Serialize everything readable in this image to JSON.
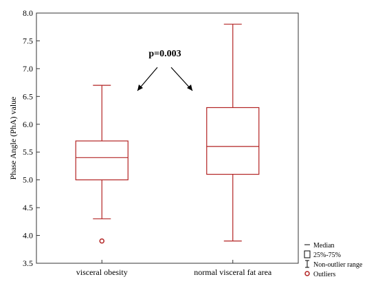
{
  "chart_data": {
    "type": "box",
    "title": "",
    "xlabel": "",
    "ylabel": "Phase Angle (PhA) value",
    "ylim": [
      3.5,
      8.0
    ],
    "yticks": [
      "3.5",
      "4.0",
      "4.5",
      "5.0",
      "5.5",
      "6.0",
      "6.5",
      "7.0",
      "7.5",
      "8.0"
    ],
    "grid": false,
    "legend_position": "bottom-right",
    "box_color": "#b22222",
    "categories": [
      "visceral obesity",
      "normal visceral fat area"
    ],
    "boxes": [
      {
        "category": "visceral obesity",
        "whisker_low": 4.3,
        "q1": 5.0,
        "median": 5.4,
        "q3": 5.7,
        "whisker_high": 6.7,
        "outliers": [
          3.9
        ]
      },
      {
        "category": "normal visceral fat area",
        "whisker_low": 3.9,
        "q1": 5.1,
        "median": 5.6,
        "q3": 6.3,
        "whisker_high": 7.8,
        "outliers": []
      }
    ],
    "annotation": "p=0.003",
    "legend": [
      "Median",
      "25%-75%",
      "Non-outlier range",
      "Outliers"
    ]
  }
}
